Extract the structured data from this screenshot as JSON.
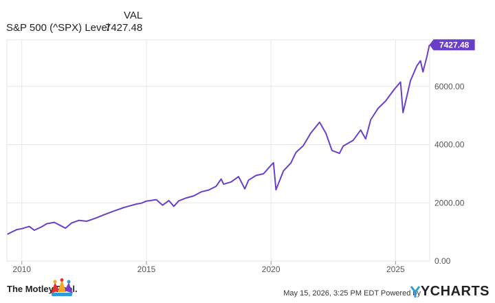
{
  "legend": {
    "header": "VAL",
    "series_name": "S&P 500 (^SPX) Level",
    "series_value": "7427.48"
  },
  "colors": {
    "line": "#6a3fc8",
    "badge": "#6a3fc8",
    "grid": "#e6e6e6",
    "axis_text": "#555555",
    "plot_bg": "#ffffff"
  },
  "chart_data": {
    "type": "line",
    "title": "",
    "xlabel": "",
    "ylabel": "",
    "x_ticks": [
      "2010",
      "2015",
      "2020",
      "2025"
    ],
    "y_ticks": [
      "0.00",
      "2000.00",
      "4000.00",
      "6000.00"
    ],
    "ylim": [
      0,
      7600
    ],
    "xlim": [
      2009.4,
      2026.37
    ],
    "grid": true,
    "last_value_label": "7427.48",
    "series": [
      {
        "name": "S&P 500 (^SPX) Level",
        "x": [
          2009.42,
          2009.6,
          2009.8,
          2010.0,
          2010.3,
          2010.5,
          2010.8,
          2011.0,
          2011.3,
          2011.6,
          2011.75,
          2012.0,
          2012.3,
          2012.6,
          2012.8,
          2013.0,
          2013.3,
          2013.6,
          2013.9,
          2014.1,
          2014.3,
          2014.6,
          2014.8,
          2015.0,
          2015.4,
          2015.65,
          2015.9,
          2016.1,
          2016.3,
          2016.6,
          2016.9,
          2017.2,
          2017.5,
          2017.8,
          2018.0,
          2018.1,
          2018.4,
          2018.7,
          2018.95,
          2019.1,
          2019.4,
          2019.7,
          2019.95,
          2020.1,
          2020.2,
          2020.5,
          2020.8,
          2021.0,
          2021.3,
          2021.6,
          2021.95,
          2022.2,
          2022.45,
          2022.75,
          2022.9,
          2023.1,
          2023.3,
          2023.6,
          2023.8,
          2024.0,
          2024.3,
          2024.6,
          2024.95,
          2025.2,
          2025.3,
          2025.6,
          2025.85,
          2026.0,
          2026.1,
          2026.25,
          2026.36
        ],
        "values": [
          920,
          1000,
          1080,
          1115,
          1190,
          1060,
          1180,
          1285,
          1330,
          1200,
          1130,
          1310,
          1400,
          1370,
          1425,
          1490,
          1590,
          1690,
          1780,
          1840,
          1890,
          1960,
          1990,
          2060,
          2110,
          1920,
          2080,
          1880,
          2070,
          2170,
          2240,
          2380,
          2440,
          2570,
          2820,
          2640,
          2720,
          2900,
          2480,
          2780,
          2940,
          3000,
          3240,
          3380,
          2450,
          3100,
          3370,
          3730,
          3970,
          4400,
          4770,
          4400,
          3800,
          3700,
          3950,
          4050,
          4150,
          4500,
          4200,
          4850,
          5250,
          5500,
          5900,
          6150,
          5100,
          6200,
          6700,
          6880,
          6500,
          7000,
          7427.48
        ]
      }
    ]
  },
  "footer": {
    "brand": "The Motley Fool.",
    "credit": "May 15, 2026, 3:25 PM EDT Powered by",
    "ycharts": "YCHARTS"
  }
}
